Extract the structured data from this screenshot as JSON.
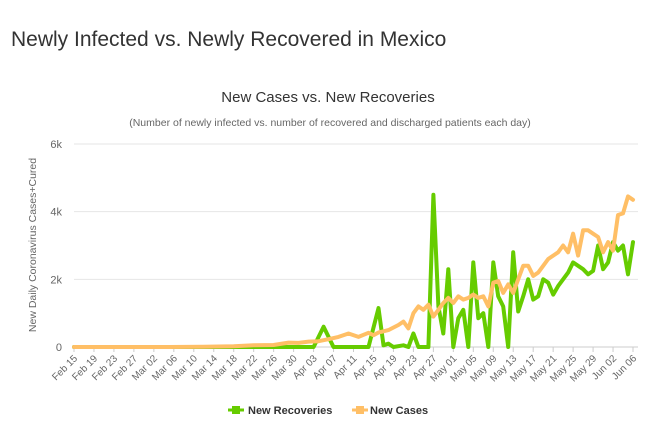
{
  "page": {
    "heading": "Newly Infected vs. Newly Recovered in Mexico"
  },
  "chart_data": {
    "type": "line",
    "title": "New Cases vs. New Recoveries",
    "subtitle": "(Number of newly infected vs. number of recovered and discharged patients each day)",
    "ylabel": "New Daily Coronavirus Cases+Cured",
    "xlabel": "",
    "ylim": [
      0,
      6000
    ],
    "yticks": [
      0,
      2000,
      4000,
      6000
    ],
    "ytick_labels": [
      "0",
      "2k",
      "4k",
      "6k"
    ],
    "xtick_labels": [
      "Feb 15",
      "Feb 19",
      "Feb 23",
      "Feb 27",
      "Mar 02",
      "Mar 06",
      "Mar 10",
      "Mar 14",
      "Mar 18",
      "Mar 22",
      "Mar 26",
      "Mar 30",
      "Apr 03",
      "Apr 07",
      "Apr 11",
      "Apr 15",
      "Apr 19",
      "Apr 23",
      "Apr 27",
      "May 01",
      "May 05",
      "May 09",
      "May 13",
      "May 17",
      "May 21",
      "May 25",
      "May 29",
      "Jun 02",
      "Jun 06"
    ],
    "x_start": "2020-02-15",
    "x_end": "2020-06-07",
    "grid": true,
    "legend_position": "bottom",
    "colors": {
      "recoveries": "#66cc00",
      "cases": "#ffbf66",
      "grid": "#e6e6e6",
      "axis_text": "#666666"
    },
    "series": [
      {
        "name": "New Recoveries",
        "color": "#66cc00",
        "points": [
          [
            "2020-02-15",
            0
          ],
          [
            "2020-02-20",
            0
          ],
          [
            "2020-02-25",
            0
          ],
          [
            "2020-03-01",
            0
          ],
          [
            "2020-03-10",
            0
          ],
          [
            "2020-03-20",
            0
          ],
          [
            "2020-03-28",
            0
          ],
          [
            "2020-04-01",
            0
          ],
          [
            "2020-04-03",
            0
          ],
          [
            "2020-04-05",
            600
          ],
          [
            "2020-04-07",
            0
          ],
          [
            "2020-04-09",
            0
          ],
          [
            "2020-04-11",
            0
          ],
          [
            "2020-04-14",
            0
          ],
          [
            "2020-04-16",
            1150
          ],
          [
            "2020-04-17",
            50
          ],
          [
            "2020-04-18",
            100
          ],
          [
            "2020-04-19",
            0
          ],
          [
            "2020-04-21",
            50
          ],
          [
            "2020-04-22",
            0
          ],
          [
            "2020-04-23",
            400
          ],
          [
            "2020-04-24",
            0
          ],
          [
            "2020-04-25",
            0
          ],
          [
            "2020-04-26",
            0
          ],
          [
            "2020-04-27",
            4500
          ],
          [
            "2020-04-28",
            1200
          ],
          [
            "2020-04-29",
            400
          ],
          [
            "2020-04-30",
            2300
          ],
          [
            "2020-05-01",
            0
          ],
          [
            "2020-05-02",
            850
          ],
          [
            "2020-05-03",
            1100
          ],
          [
            "2020-05-04",
            0
          ],
          [
            "2020-05-05",
            2500
          ],
          [
            "2020-05-06",
            850
          ],
          [
            "2020-05-07",
            1000
          ],
          [
            "2020-05-08",
            0
          ],
          [
            "2020-05-09",
            2500
          ],
          [
            "2020-05-10",
            1500
          ],
          [
            "2020-05-11",
            1200
          ],
          [
            "2020-05-12",
            0
          ],
          [
            "2020-05-13",
            2800
          ],
          [
            "2020-05-14",
            1050
          ],
          [
            "2020-05-15",
            1500
          ],
          [
            "2020-05-16",
            2000
          ],
          [
            "2020-05-17",
            1400
          ],
          [
            "2020-05-18",
            1500
          ],
          [
            "2020-05-19",
            2000
          ],
          [
            "2020-05-20",
            1900
          ],
          [
            "2020-05-21",
            1550
          ],
          [
            "2020-05-22",
            1800
          ],
          [
            "2020-05-23",
            2000
          ],
          [
            "2020-05-24",
            2200
          ],
          [
            "2020-05-25",
            2500
          ],
          [
            "2020-05-26",
            2400
          ],
          [
            "2020-05-27",
            2300
          ],
          [
            "2020-05-28",
            2150
          ],
          [
            "2020-05-29",
            2250
          ],
          [
            "2020-05-30",
            3000
          ],
          [
            "2020-05-31",
            2300
          ],
          [
            "2020-06-01",
            2500
          ],
          [
            "2020-06-02",
            3100
          ],
          [
            "2020-06-03",
            2850
          ],
          [
            "2020-06-04",
            3000
          ],
          [
            "2020-06-05",
            2150
          ],
          [
            "2020-06-06",
            3100
          ]
        ]
      },
      {
        "name": "New Cases",
        "color": "#ffbf66",
        "points": [
          [
            "2020-02-15",
            0
          ],
          [
            "2020-02-28",
            0
          ],
          [
            "2020-03-05",
            0
          ],
          [
            "2020-03-12",
            5
          ],
          [
            "2020-03-18",
            20
          ],
          [
            "2020-03-22",
            50
          ],
          [
            "2020-03-26",
            60
          ],
          [
            "2020-03-29",
            130
          ],
          [
            "2020-03-31",
            120
          ],
          [
            "2020-04-02",
            160
          ],
          [
            "2020-04-04",
            170
          ],
          [
            "2020-04-06",
            230
          ],
          [
            "2020-04-08",
            300
          ],
          [
            "2020-04-10",
            400
          ],
          [
            "2020-04-12",
            300
          ],
          [
            "2020-04-14",
            420
          ],
          [
            "2020-04-15",
            350
          ],
          [
            "2020-04-16",
            430
          ],
          [
            "2020-04-18",
            500
          ],
          [
            "2020-04-20",
            650
          ],
          [
            "2020-04-21",
            750
          ],
          [
            "2020-04-22",
            550
          ],
          [
            "2020-04-23",
            1000
          ],
          [
            "2020-04-24",
            1200
          ],
          [
            "2020-04-25",
            1100
          ],
          [
            "2020-04-26",
            1250
          ],
          [
            "2020-04-27",
            900
          ],
          [
            "2020-04-28",
            1100
          ],
          [
            "2020-04-29",
            1300
          ],
          [
            "2020-04-30",
            1450
          ],
          [
            "2020-05-01",
            1300
          ],
          [
            "2020-05-02",
            1500
          ],
          [
            "2020-05-03",
            1400
          ],
          [
            "2020-05-04",
            1450
          ],
          [
            "2020-05-05",
            1550
          ],
          [
            "2020-05-06",
            1450
          ],
          [
            "2020-05-07",
            1500
          ],
          [
            "2020-05-08",
            1200
          ],
          [
            "2020-05-09",
            1900
          ],
          [
            "2020-05-10",
            1950
          ],
          [
            "2020-05-11",
            1600
          ],
          [
            "2020-05-12",
            1850
          ],
          [
            "2020-05-13",
            1600
          ],
          [
            "2020-05-14",
            2000
          ],
          [
            "2020-05-15",
            2400
          ],
          [
            "2020-05-16",
            2400
          ],
          [
            "2020-05-17",
            2100
          ],
          [
            "2020-05-18",
            2200
          ],
          [
            "2020-05-19",
            2400
          ],
          [
            "2020-05-20",
            2600
          ],
          [
            "2020-05-21",
            2700
          ],
          [
            "2020-05-22",
            2800
          ],
          [
            "2020-05-23",
            3000
          ],
          [
            "2020-05-24",
            2800
          ],
          [
            "2020-05-25",
            3350
          ],
          [
            "2020-05-26",
            2700
          ],
          [
            "2020-05-27",
            3450
          ],
          [
            "2020-05-28",
            3450
          ],
          [
            "2020-05-29",
            3350
          ],
          [
            "2020-05-30",
            3250
          ],
          [
            "2020-05-31",
            2800
          ],
          [
            "2020-06-01",
            3100
          ],
          [
            "2020-06-02",
            2850
          ],
          [
            "2020-06-03",
            3900
          ],
          [
            "2020-06-04",
            3950
          ],
          [
            "2020-06-05",
            4450
          ],
          [
            "2020-06-06",
            4350
          ]
        ]
      }
    ]
  }
}
